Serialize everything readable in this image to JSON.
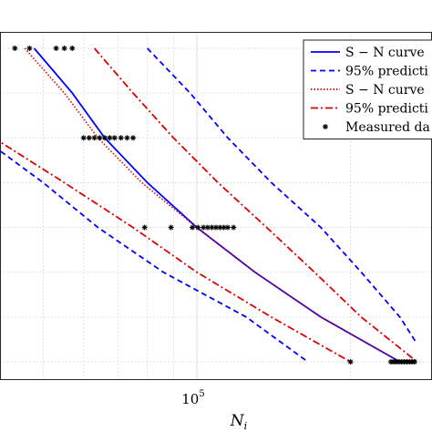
{
  "chart_data": {
    "type": "line",
    "x_scale": "log",
    "grid": true,
    "legend_placement": "top-right",
    "xlabel": "N",
    "xlabel_sub": "i",
    "ylabel": "",
    "x_tick_labels": [
      {
        "value": 100000,
        "base": "10",
        "exp": "5"
      }
    ],
    "series": [
      {
        "name": "S − N curve",
        "color": "#0000ff",
        "style": "solid",
        "points": [
          [
            48000,
            7.0
          ],
          [
            57000,
            6.0
          ],
          [
            66000,
            5.0
          ],
          [
            80000,
            4.0
          ],
          [
            100000,
            3.0
          ],
          [
            130000,
            2.0
          ],
          [
            175000,
            1.0
          ],
          [
            250000,
            0.0
          ]
        ]
      },
      {
        "name": "95% predicti",
        "color": "#0000ff",
        "style": "dash",
        "points": [
          [
            80000,
            7.0
          ],
          [
            97000,
            6.0
          ],
          [
            115000,
            5.0
          ],
          [
            140000,
            4.0
          ],
          [
            175000,
            3.0
          ],
          [
            210000,
            2.0
          ],
          [
            250000,
            1.0
          ],
          [
            270000,
            0.4
          ]
        ]
      },
      {
        "name": "",
        "color": "#0000ff",
        "style": "dash",
        "points": [
          [
            25000,
            6.8
          ],
          [
            30000,
            6.0
          ],
          [
            38000,
            5.0
          ],
          [
            50000,
            4.0
          ],
          [
            64000,
            3.0
          ],
          [
            86000,
            2.0
          ],
          [
            125000,
            1.0
          ],
          [
            165000,
            0.0
          ]
        ]
      },
      {
        "name": "S − N curve",
        "color": "#dd0000",
        "style": "dot",
        "points": [
          [
            46000,
            7.0
          ],
          [
            55000,
            6.0
          ],
          [
            64000,
            5.0
          ],
          [
            78000,
            4.0
          ],
          [
            100000,
            3.0
          ],
          [
            130000,
            2.0
          ],
          [
            175000,
            1.0
          ],
          [
            250000,
            0.0
          ]
        ]
      },
      {
        "name": "95% predicti",
        "color": "#dd0000",
        "style": "dashdot",
        "points": [
          [
            63000,
            7.0
          ],
          [
            75000,
            6.0
          ],
          [
            90000,
            5.0
          ],
          [
            110000,
            4.0
          ],
          [
            137000,
            3.0
          ],
          [
            170000,
            2.0
          ],
          [
            210000,
            1.0
          ],
          [
            270000,
            0.0
          ]
        ]
      },
      {
        "name": "",
        "color": "#dd0000",
        "style": "dashdot",
        "points": [
          [
            25000,
            6.2
          ],
          [
            30000,
            5.7
          ],
          [
            40000,
            5.0
          ],
          [
            55000,
            4.0
          ],
          [
            75000,
            3.0
          ],
          [
            100000,
            2.0
          ],
          [
            140000,
            1.0
          ],
          [
            200000,
            0.0
          ]
        ]
      }
    ],
    "measured": {
      "name": "Measured da",
      "color": "#000000",
      "points": [
        [
          38000,
          7.0
        ],
        [
          40000,
          7.0
        ],
        [
          44000,
          7.0
        ],
        [
          47000,
          7.0
        ],
        [
          53000,
          7.0
        ],
        [
          55000,
          7.0
        ],
        [
          57000,
          7.0
        ],
        [
          60000,
          5.0
        ],
        [
          61500,
          5.0
        ],
        [
          63000,
          5.0
        ],
        [
          64500,
          5.0
        ],
        [
          66000,
          5.0
        ],
        [
          67500,
          5.0
        ],
        [
          69000,
          5.0
        ],
        [
          71000,
          5.0
        ],
        [
          73000,
          5.0
        ],
        [
          75000,
          5.0
        ],
        [
          79000,
          3.0
        ],
        [
          89000,
          3.0
        ],
        [
          98000,
          3.0
        ],
        [
          100500,
          3.0
        ],
        [
          103000,
          3.0
        ],
        [
          105000,
          3.0
        ],
        [
          107000,
          3.0
        ],
        [
          109000,
          3.0
        ],
        [
          111000,
          3.0
        ],
        [
          113000,
          3.0
        ],
        [
          115000,
          3.0
        ],
        [
          118000,
          3.0
        ],
        [
          200000,
          0.0
        ],
        [
          240000,
          0.0
        ],
        [
          243000,
          0.0
        ],
        [
          246000,
          0.0
        ],
        [
          249000,
          0.0
        ],
        [
          252000,
          0.0
        ],
        [
          255000,
          0.0
        ],
        [
          258000,
          0.0
        ],
        [
          261000,
          0.0
        ],
        [
          264000,
          0.0
        ],
        [
          267000,
          0.0
        ]
      ]
    },
    "legend": [
      {
        "label": "S − N curve",
        "color": "#0000ff",
        "style": "solid"
      },
      {
        "label": "95% predicti",
        "color": "#0000ff",
        "style": "dash"
      },
      {
        "label": "S − N curve",
        "color": "#dd0000",
        "style": "dot"
      },
      {
        "label": "95% predicti",
        "color": "#dd0000",
        "style": "dashdot"
      },
      {
        "label": "Measured da",
        "color": "#000000",
        "style": "marker"
      }
    ]
  }
}
